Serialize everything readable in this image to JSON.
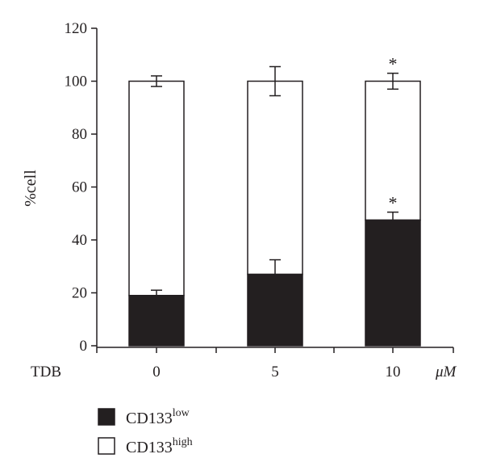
{
  "chart_data": {
    "type": "bar",
    "stacked": true,
    "categories": [
      "0",
      "5",
      "10"
    ],
    "x_prefix_label": "TDB",
    "x_unit_label": "μM",
    "ylabel": "%cell",
    "ylim": [
      0,
      120
    ],
    "yticks": [
      0,
      20,
      40,
      60,
      80,
      100,
      120
    ],
    "grid": false,
    "legend_position": "bottom-left",
    "colors": {
      "low": "#231f20",
      "high": "#ffffff",
      "axis": "#231f20"
    },
    "series": [
      {
        "name": "CD133",
        "superscript": "low",
        "values": [
          19,
          27,
          47.5
        ],
        "error": [
          2,
          5.5,
          3
        ],
        "significance": [
          "",
          "",
          "*"
        ]
      },
      {
        "name": "CD133",
        "superscript": "high",
        "values": [
          81,
          73,
          52.5
        ],
        "error": [
          2,
          5.5,
          3
        ],
        "significance": [
          "",
          "",
          "*"
        ]
      }
    ]
  }
}
